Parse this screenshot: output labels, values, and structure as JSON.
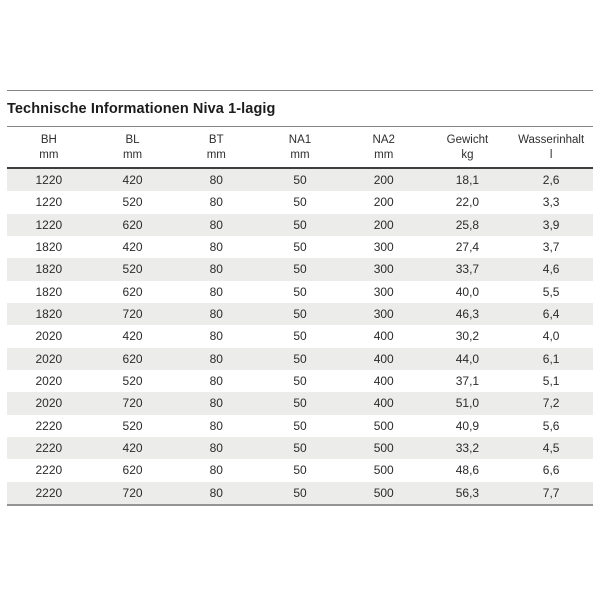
{
  "title": "Technische Informationen Niva 1-lagig",
  "table": {
    "columns": [
      {
        "label": "BH",
        "unit": "mm"
      },
      {
        "label": "BL",
        "unit": "mm"
      },
      {
        "label": "BT",
        "unit": "mm"
      },
      {
        "label": "NA1",
        "unit": "mm"
      },
      {
        "label": "NA2",
        "unit": "mm"
      },
      {
        "label": "Gewicht",
        "unit": "kg"
      },
      {
        "label": "Wasserinhalt",
        "unit": "l"
      }
    ],
    "rows": [
      [
        "1220",
        "420",
        "80",
        "50",
        "200",
        "18,1",
        "2,6"
      ],
      [
        "1220",
        "520",
        "80",
        "50",
        "200",
        "22,0",
        "3,3"
      ],
      [
        "1220",
        "620",
        "80",
        "50",
        "200",
        "25,8",
        "3,9"
      ],
      [
        "1820",
        "420",
        "80",
        "50",
        "300",
        "27,4",
        "3,7"
      ],
      [
        "1820",
        "520",
        "80",
        "50",
        "300",
        "33,7",
        "4,6"
      ],
      [
        "1820",
        "620",
        "80",
        "50",
        "300",
        "40,0",
        "5,5"
      ],
      [
        "1820",
        "720",
        "80",
        "50",
        "300",
        "46,3",
        "6,4"
      ],
      [
        "2020",
        "420",
        "80",
        "50",
        "400",
        "30,2",
        "4,0"
      ],
      [
        "2020",
        "620",
        "80",
        "50",
        "400",
        "44,0",
        "6,1"
      ],
      [
        "2020",
        "520",
        "80",
        "50",
        "400",
        "37,1",
        "5,1"
      ],
      [
        "2020",
        "720",
        "80",
        "50",
        "400",
        "51,0",
        "7,2"
      ],
      [
        "2220",
        "520",
        "80",
        "50",
        "500",
        "40,9",
        "5,6"
      ],
      [
        "2220",
        "420",
        "80",
        "50",
        "500",
        "33,2",
        "4,5"
      ],
      [
        "2220",
        "620",
        "80",
        "50",
        "500",
        "48,6",
        "6,6"
      ],
      [
        "2220",
        "720",
        "80",
        "50",
        "500",
        "56,3",
        "7,7"
      ]
    ]
  },
  "colors": {
    "row_stripe": "#ececea",
    "rule": "#858585",
    "header_rule": "#3e3e3e",
    "bottom_rule": "#949494",
    "text": "#2b2b2b"
  }
}
